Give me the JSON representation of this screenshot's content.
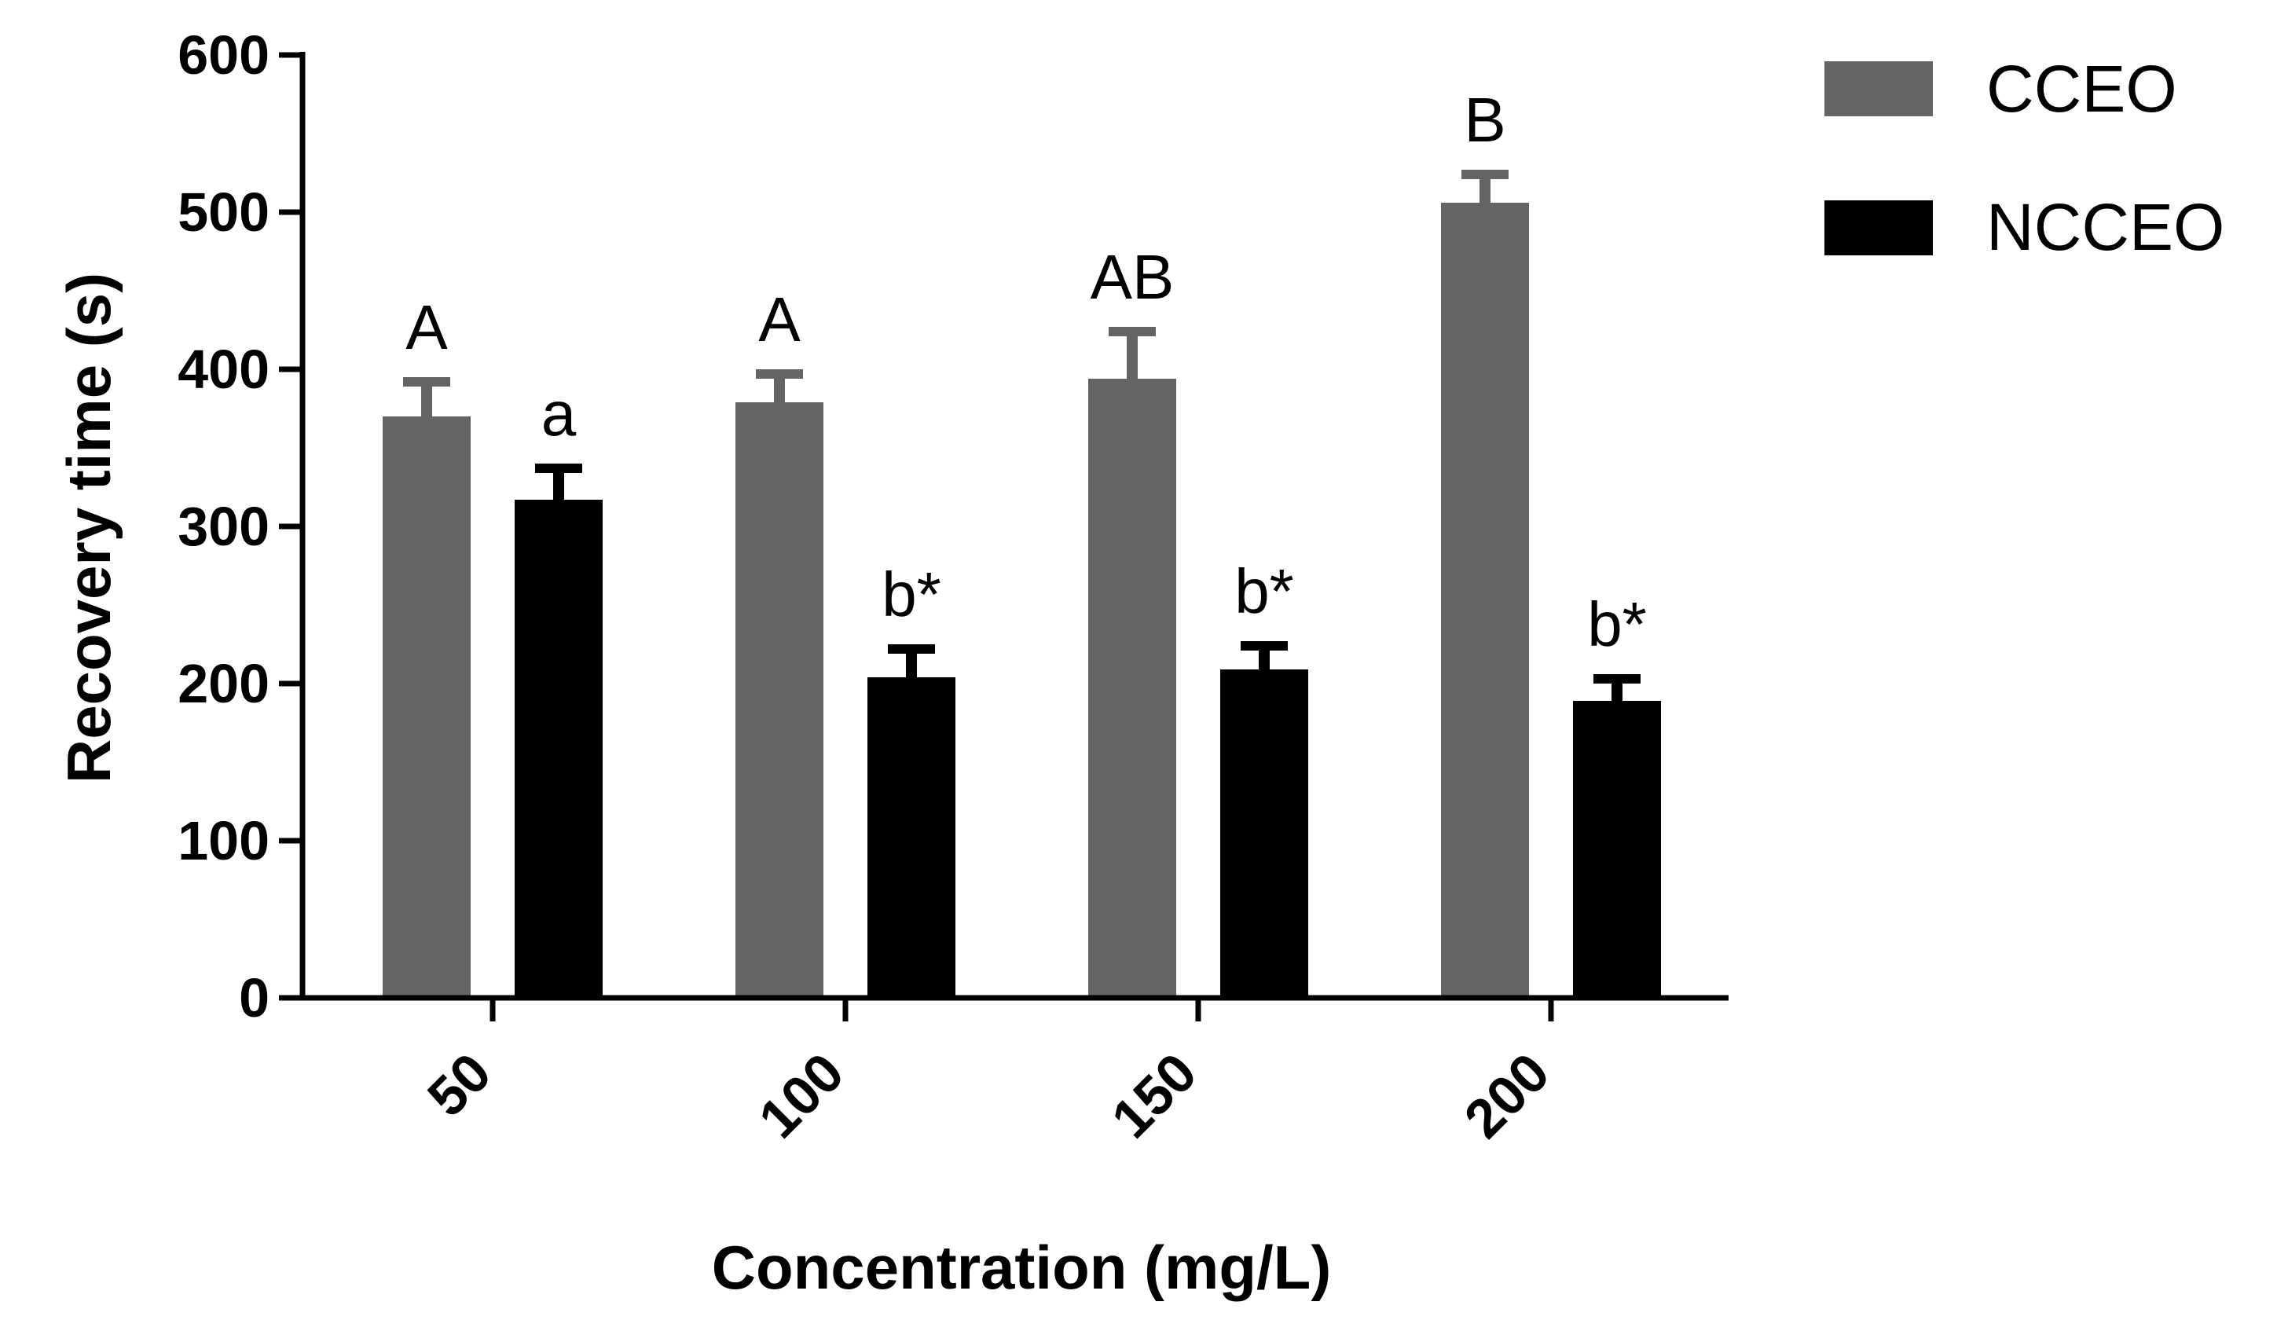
{
  "chart_data": {
    "type": "bar",
    "title": "",
    "xlabel": "Concentration (mg/L)",
    "ylabel": "Recovery time (s)",
    "categories": [
      "50",
      "100",
      "150",
      "200"
    ],
    "ylim": [
      0,
      600
    ],
    "yticks": [
      "0",
      "100",
      "200",
      "300",
      "400",
      "500",
      "600"
    ],
    "series": [
      {
        "name": "CCEO",
        "color": "#646464",
        "values": [
          370,
          379,
          394,
          506
        ],
        "errors": [
          22,
          18,
          30,
          18
        ],
        "annotations": [
          "A",
          "A",
          "AB",
          "B"
        ]
      },
      {
        "name": "NCCEO",
        "color": "#000000",
        "values": [
          317,
          204,
          209,
          189
        ],
        "errors": [
          20,
          18,
          15,
          14
        ],
        "annotations": [
          "a",
          "b*",
          "b*",
          "b*"
        ]
      }
    ],
    "legend_position": "top-right",
    "grid": false
  }
}
